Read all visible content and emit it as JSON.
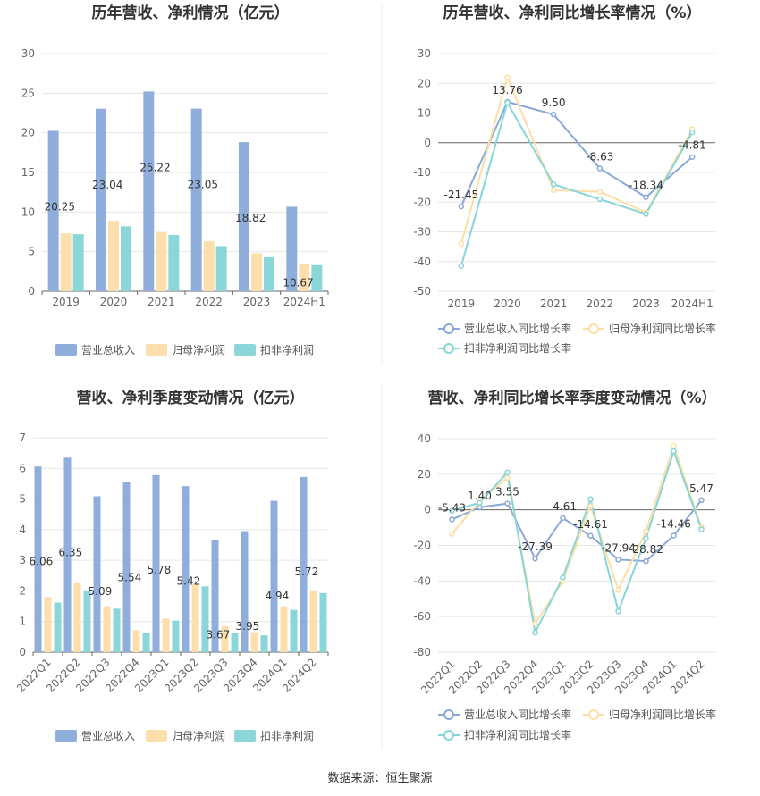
{
  "source": "数据来源：恒生聚源",
  "colors": {
    "revenue": "#8FAEDB",
    "net_profit": "#FDDFAE",
    "deducted_profit": "#8AD6D9",
    "rev_line": "#8AA9D6",
    "np_line": "#FDDFA6",
    "dp_line": "#86D6D8"
  },
  "chart_data": [
    {
      "type": "bar",
      "title": "历年营收、净利情况（亿元）",
      "categories": [
        "2019",
        "2020",
        "2021",
        "2022",
        "2023",
        "2024H1"
      ],
      "ylim": [
        0,
        30
      ],
      "yticks": [
        0,
        5,
        10,
        15,
        20,
        25,
        30
      ],
      "series": [
        {
          "name": "营业总收入",
          "values": [
            20.25,
            23.04,
            25.22,
            23.05,
            18.82,
            10.67
          ],
          "labels": [
            "20.25",
            "23.04",
            "25.22",
            "23.05",
            "18.82",
            "10.67"
          ]
        },
        {
          "name": "归母净利润",
          "values": [
            7.3,
            8.9,
            7.5,
            6.3,
            4.8,
            3.5
          ]
        },
        {
          "name": "扣非净利润",
          "values": [
            7.2,
            8.2,
            7.1,
            5.7,
            4.3,
            3.3
          ]
        }
      ],
      "legend": [
        "营业总收入",
        "归母净利润",
        "扣非净利润"
      ]
    },
    {
      "type": "line",
      "title": "历年营收、净利同比增长率情况（%）",
      "categories": [
        "2019",
        "2020",
        "2021",
        "2022",
        "2023",
        "2024H1"
      ],
      "ylim": [
        -50,
        30
      ],
      "yticks": [
        -50,
        -40,
        -30,
        -20,
        -10,
        0,
        10,
        20,
        30
      ],
      "series": [
        {
          "name": "营业总收入同比增长率",
          "values": [
            -21.45,
            13.76,
            9.5,
            -8.63,
            -18.34,
            -4.81
          ],
          "labels": [
            "-21.45",
            "13.76",
            "9.50",
            "-8.63",
            "-18.34",
            "-4.81"
          ]
        },
        {
          "name": "归母净利润同比增长率",
          "values": [
            -34,
            22,
            -16,
            -16.5,
            -23.5,
            4.5
          ]
        },
        {
          "name": "扣非净利润同比增长率",
          "values": [
            -41.5,
            13.5,
            -14,
            -19,
            -24,
            3.5
          ]
        }
      ],
      "legend": [
        "营业总收入同比增长率",
        "归母净利润同比增长率",
        "扣非净利润同比增长率"
      ]
    },
    {
      "type": "bar",
      "title": "营收、净利季度变动情况（亿元）",
      "categories": [
        "2022Q1",
        "2022Q2",
        "2022Q3",
        "2022Q4",
        "2023Q1",
        "2023Q2",
        "2023Q3",
        "2023Q4",
        "2024Q1",
        "2024Q2"
      ],
      "ylim": [
        0,
        7
      ],
      "yticks": [
        0,
        1,
        2,
        3,
        4,
        5,
        6,
        7
      ],
      "series": [
        {
          "name": "营业总收入",
          "values": [
            6.06,
            6.35,
            5.09,
            5.54,
            5.78,
            5.42,
            3.67,
            3.95,
            4.94,
            5.72
          ],
          "labels": [
            "6.06",
            "6.35",
            "5.09",
            "5.54",
            "5.78",
            "5.42",
            "3.67",
            "3.95",
            "4.94",
            "5.72"
          ]
        },
        {
          "name": "归母净利润",
          "values": [
            1.8,
            2.25,
            1.5,
            0.72,
            1.1,
            2.22,
            0.85,
            0.65,
            1.5,
            2.0
          ]
        },
        {
          "name": "扣非净利润",
          "values": [
            1.62,
            2.02,
            1.42,
            0.63,
            1.03,
            2.15,
            0.62,
            0.55,
            1.38,
            1.93
          ]
        }
      ],
      "legend": [
        "营业总收入",
        "归母净利润",
        "扣非净利润"
      ]
    },
    {
      "type": "line",
      "title": "营收、净利同比增长率季度变动情况（%）",
      "categories": [
        "2022Q1",
        "2022Q2",
        "2022Q3",
        "2022Q4",
        "2023Q1",
        "2023Q2",
        "2023Q3",
        "2023Q4",
        "2024Q1",
        "2024Q2"
      ],
      "ylim": [
        -80,
        40
      ],
      "yticks": [
        -80,
        -60,
        -40,
        -20,
        0,
        20,
        40
      ],
      "series": [
        {
          "name": "营业总收入同比增长率",
          "values": [
            -5.43,
            1.4,
            3.55,
            -27.39,
            -4.61,
            -14.61,
            -27.94,
            -28.82,
            -14.46,
            5.47
          ],
          "labels": [
            "-5.43",
            "1.40",
            "3.55",
            "-27.39",
            "-4.61",
            "-14.61",
            "-27.94",
            "-28.82",
            "-14.46",
            "5.47"
          ]
        },
        {
          "name": "归母净利润同比增长率",
          "values": [
            -13.5,
            5,
            18,
            -64,
            -40,
            2,
            -45,
            -12,
            36,
            -10
          ]
        },
        {
          "name": "扣非净利润同比增长率",
          "values": [
            -0.5,
            4,
            21,
            -69,
            -38,
            6,
            -57,
            -16,
            33,
            -11
          ]
        }
      ],
      "legend": [
        "营业总收入同比增长率",
        "归母净利润同比增长率",
        "扣非净利润同比增长率"
      ]
    }
  ]
}
